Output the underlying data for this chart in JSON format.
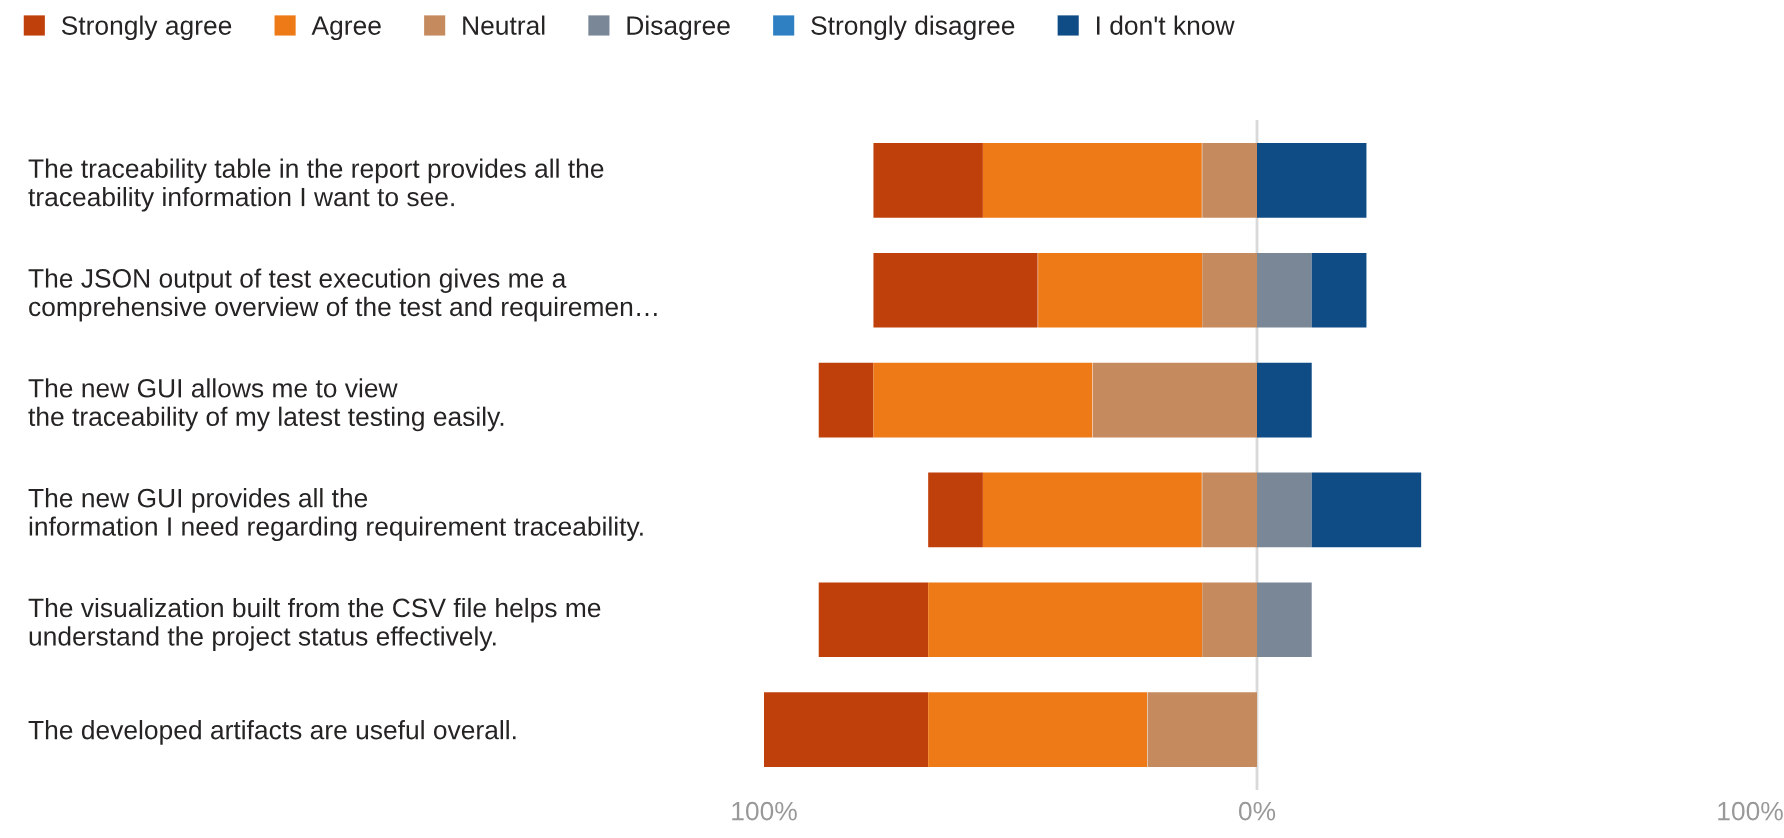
{
  "chart_data": {
    "type": "bar",
    "orientation": "horizontal",
    "legend": "top",
    "categories": [
      "The traceability table in the report provides all the\ntraceability information I want to see.",
      "The JSON output of test execution gives me a\ncomprehensive overview of the test and requiremen…",
      "The new GUI allows me to view\nthe traceability of my latest testing easily.",
      "The new GUI provides all the\ninformation I need regarding requirement traceability.",
      "The visualization built from the CSV file helps me\nunderstand the project status effectively.",
      "The developed artifacts are useful overall."
    ],
    "series": [
      {
        "name": "Strongly agree",
        "color": "#c0400c",
        "values": [
          22.2,
          33.3,
          11.1,
          11.1,
          22.2,
          33.3
        ],
        "base": [
          -77.8,
          -77.8,
          -88.9,
          -66.7,
          -88.9,
          -100
        ]
      },
      {
        "name": "Agree",
        "color": "#ee7a17",
        "values": [
          44.4,
          33.3,
          44.4,
          44.4,
          55.6,
          44.4
        ],
        "base": [
          -55.6,
          -44.4,
          -77.8,
          -55.6,
          -66.7,
          -66.7
        ]
      },
      {
        "name": "Neutral",
        "color": "#c68a5f",
        "values": [
          11.1,
          11.1,
          33.3,
          11.1,
          11.1,
          22.2
        ],
        "base": [
          -11.1,
          -11.1,
          -33.3,
          -11.1,
          -11.1,
          -22.2
        ]
      },
      {
        "name": "Disagree",
        "color": "#7a8797",
        "values": [
          null,
          11.1,
          null,
          11.1,
          11.1,
          null
        ],
        "base": [
          null,
          0,
          null,
          0,
          0,
          null
        ]
      },
      {
        "name": "Strongly disagree",
        "color": "#2f80c2",
        "values": [
          null,
          null,
          null,
          null,
          null,
          null
        ],
        "base": [
          null,
          null,
          null,
          null,
          null,
          null
        ]
      },
      {
        "name": "I don't know",
        "color": "#0f4c85",
        "values": [
          22.2,
          11.1,
          11.1,
          22.2,
          null,
          null
        ],
        "base": [
          0,
          11.1,
          0,
          11.1,
          null,
          null
        ]
      }
    ],
    "xlim": [
      -100,
      100
    ],
    "xticks": [
      {
        "value": -100,
        "label": "100%"
      },
      {
        "value": 0,
        "label": "0%"
      },
      {
        "value": 100,
        "label": "100%"
      }
    ],
    "ref_lines": [
      {
        "axis": "x",
        "value": 0,
        "color": "#d9d9d9"
      }
    ]
  }
}
